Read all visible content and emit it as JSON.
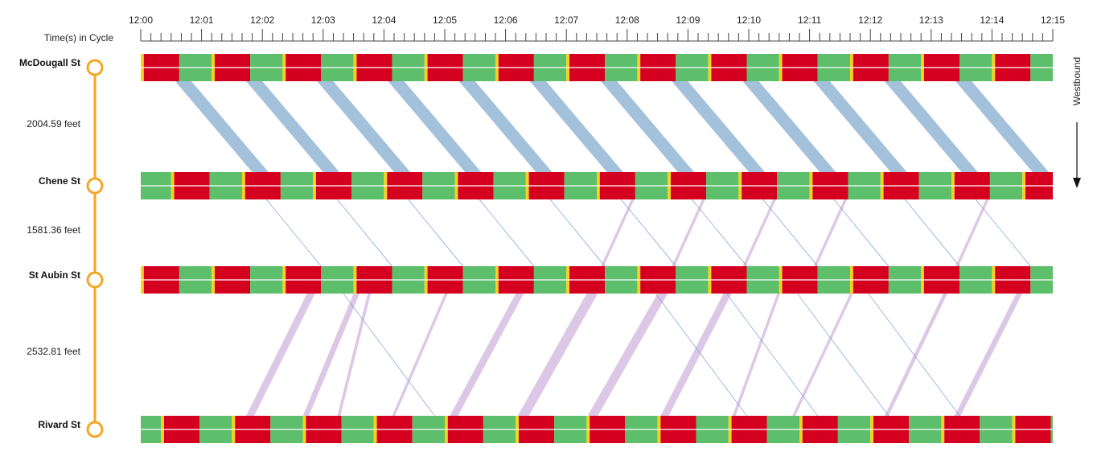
{
  "chart_data": {
    "type": "time-space-diagram",
    "x_axis": {
      "caption": "Time(s) in Cycle",
      "start_minute": 0,
      "end_minute": 15,
      "tick_labels": [
        "12:00",
        "12:01",
        "12:02",
        "12:03",
        "12:04",
        "12:05",
        "12:06",
        "12:07",
        "12:08",
        "12:09",
        "12:10",
        "12:11",
        "12:12",
        "12:13",
        "12:14",
        "12:15"
      ],
      "minor_ticks_per_minute": 6
    },
    "direction_label": "Westbound",
    "intersections": [
      {
        "name": "McDougall St",
        "offset_seconds": 3
      },
      {
        "name": "Chene St",
        "offset_seconds": 33
      },
      {
        "name": "St Aubin St",
        "offset_seconds": 3
      },
      {
        "name": "Rivard St",
        "offset_seconds": 23
      }
    ],
    "distances": [
      "2004.59 feet",
      "1581.36 feet",
      "2532.81 feet"
    ],
    "signal": {
      "cycle_seconds": 70,
      "red_seconds": 35,
      "green_seconds": 32,
      "yellow_seconds": 3
    },
    "colors": {
      "red": "#d5001f",
      "green": "#5dbf6b",
      "yellow": "#f7d21d",
      "westbound_band": "#a4c1dc",
      "eastbound_band": "#dcc8e6",
      "link_line": "#f5a623",
      "node_fill": "#ffffff",
      "thin_line": "#6f8fc9"
    },
    "bands": [
      {
        "dir": "west",
        "seg": 0,
        "t_top": 34,
        "t_bottom": 110,
        "width_s": 16
      },
      {
        "dir": "west",
        "seg": 0,
        "t_top": 104,
        "t_bottom": 180,
        "width_s": 16
      },
      {
        "dir": "west",
        "seg": 0,
        "t_top": 174,
        "t_bottom": 250,
        "width_s": 16
      },
      {
        "dir": "west",
        "seg": 0,
        "t_top": 244,
        "t_bottom": 320,
        "width_s": 16
      },
      {
        "dir": "west",
        "seg": 0,
        "t_top": 314,
        "t_bottom": 390,
        "width_s": 16
      },
      {
        "dir": "west",
        "seg": 0,
        "t_top": 384,
        "t_bottom": 460,
        "width_s": 16
      },
      {
        "dir": "west",
        "seg": 0,
        "t_top": 454,
        "t_bottom": 530,
        "width_s": 16
      },
      {
        "dir": "west",
        "seg": 0,
        "t_top": 524,
        "t_bottom": 600,
        "width_s": 16
      },
      {
        "dir": "west",
        "seg": 0,
        "t_top": 594,
        "t_bottom": 670,
        "width_s": 16
      },
      {
        "dir": "west",
        "seg": 0,
        "t_top": 664,
        "t_bottom": 740,
        "width_s": 16
      },
      {
        "dir": "west",
        "seg": 0,
        "t_top": 734,
        "t_bottom": 810,
        "width_s": 16
      },
      {
        "dir": "west",
        "seg": 0,
        "t_top": 804,
        "t_bottom": 880,
        "width_s": 16
      },
      {
        "dir": "east",
        "seg": 1,
        "t_top": 484,
        "t_bottom": 454,
        "width_s": 3
      },
      {
        "dir": "east",
        "seg": 1,
        "t_top": 554,
        "t_bottom": 524,
        "width_s": 3
      },
      {
        "dir": "east",
        "seg": 1,
        "t_top": 624,
        "t_bottom": 594,
        "width_s": 3
      },
      {
        "dir": "east",
        "seg": 1,
        "t_top": 694,
        "t_bottom": 664,
        "width_s": 3
      },
      {
        "dir": "east",
        "seg": 1,
        "t_top": 834,
        "t_bottom": 804,
        "width_s": 3
      },
      {
        "dir": "east",
        "seg": 2,
        "t_top": 164,
        "t_bottom": 104,
        "width_s": 8
      },
      {
        "dir": "east",
        "seg": 2,
        "t_top": 210,
        "t_bottom": 160,
        "width_s": 6
      },
      {
        "dir": "east",
        "seg": 2,
        "t_top": 224,
        "t_bottom": 194,
        "width_s": 3
      },
      {
        "dir": "east",
        "seg": 2,
        "t_top": 300,
        "t_bottom": 248,
        "width_s": 3
      },
      {
        "dir": "east",
        "seg": 2,
        "t_top": 370,
        "t_bottom": 305,
        "width_s": 8
      },
      {
        "dir": "east",
        "seg": 2,
        "t_top": 440,
        "t_bottom": 372,
        "width_s": 11
      },
      {
        "dir": "east",
        "seg": 2,
        "t_top": 510,
        "t_bottom": 441,
        "width_s": 10
      },
      {
        "dir": "east",
        "seg": 2,
        "t_top": 575,
        "t_bottom": 513,
        "width_s": 8
      },
      {
        "dir": "east",
        "seg": 2,
        "t_top": 628,
        "t_bottom": 584,
        "width_s": 3
      },
      {
        "dir": "east",
        "seg": 2,
        "t_top": 700,
        "t_bottom": 643,
        "width_s": 3
      },
      {
        "dir": "east",
        "seg": 2,
        "t_top": 792,
        "t_bottom": 734,
        "width_s": 4
      },
      {
        "dir": "east",
        "seg": 2,
        "t_top": 864,
        "t_bottom": 803,
        "width_s": 6
      }
    ],
    "thin_lines": [
      {
        "seg": 1,
        "t_top": 124,
        "t_bottom": 178
      },
      {
        "seg": 1,
        "t_top": 194,
        "t_bottom": 248
      },
      {
        "seg": 1,
        "t_top": 264,
        "t_bottom": 318
      },
      {
        "seg": 1,
        "t_top": 334,
        "t_bottom": 388
      },
      {
        "seg": 1,
        "t_top": 404,
        "t_bottom": 458
      },
      {
        "seg": 1,
        "t_top": 474,
        "t_bottom": 528
      },
      {
        "seg": 1,
        "t_top": 544,
        "t_bottom": 598
      },
      {
        "seg": 1,
        "t_top": 614,
        "t_bottom": 668
      },
      {
        "seg": 1,
        "t_top": 684,
        "t_bottom": 738
      },
      {
        "seg": 1,
        "t_top": 754,
        "t_bottom": 808
      },
      {
        "seg": 1,
        "t_top": 824,
        "t_bottom": 878
      },
      {
        "seg": 2,
        "t_top": 200,
        "t_bottom": 290
      },
      {
        "seg": 2,
        "t_top": 508,
        "t_bottom": 598
      },
      {
        "seg": 2,
        "t_top": 578,
        "t_bottom": 668
      },
      {
        "seg": 2,
        "t_top": 648,
        "t_bottom": 738
      },
      {
        "seg": 2,
        "t_top": 718,
        "t_bottom": 808
      }
    ]
  }
}
